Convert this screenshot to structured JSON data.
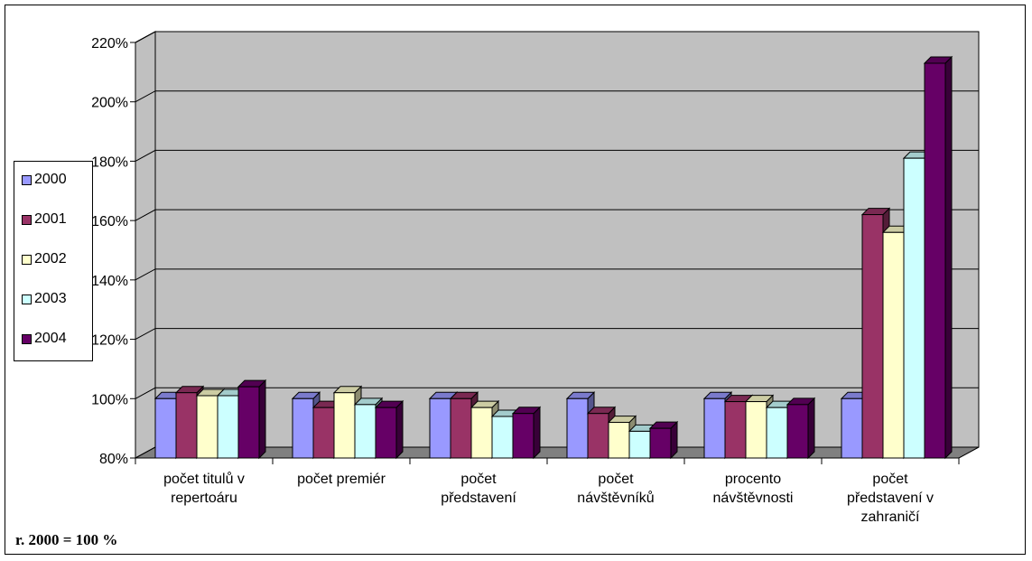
{
  "chart_data": {
    "type": "bar",
    "style": "3d-clustered-column",
    "title": "",
    "xlabel": "",
    "ylabel": "",
    "ylim": [
      0.8,
      2.2
    ],
    "y_ticks": [
      "80%",
      "100%",
      "120%",
      "140%",
      "160%",
      "180%",
      "200%",
      "220%"
    ],
    "categories": [
      [
        "počet titulů v",
        "repertoáru"
      ],
      [
        "počet premiér"
      ],
      [
        "počet",
        "představení"
      ],
      [
        "počet",
        "návštěvníků"
      ],
      [
        "procento",
        "návštěvnosti"
      ],
      [
        "počet",
        "představení v",
        "zahraničí"
      ]
    ],
    "series": [
      {
        "name": "2000",
        "color": "#9999ff",
        "values": [
          1.0,
          1.0,
          1.0,
          1.0,
          1.0,
          1.0
        ]
      },
      {
        "name": "2001",
        "color": "#993366",
        "values": [
          1.02,
          0.97,
          1.0,
          0.95,
          0.99,
          1.62
        ]
      },
      {
        "name": "2002",
        "color": "#ffffcc",
        "values": [
          1.01,
          1.02,
          0.97,
          0.92,
          0.99,
          1.56
        ]
      },
      {
        "name": "2003",
        "color": "#ccffff",
        "values": [
          1.01,
          0.98,
          0.94,
          0.89,
          0.97,
          1.81
        ]
      },
      {
        "name": "2004",
        "color": "#660066",
        "values": [
          1.04,
          0.97,
          0.95,
          0.9,
          0.98,
          2.13
        ]
      }
    ],
    "grid": true,
    "legend_position": "left",
    "wall_color": "#c0c0c0",
    "floor_color": "#808080"
  },
  "note": "r. 2000 = 100 %"
}
